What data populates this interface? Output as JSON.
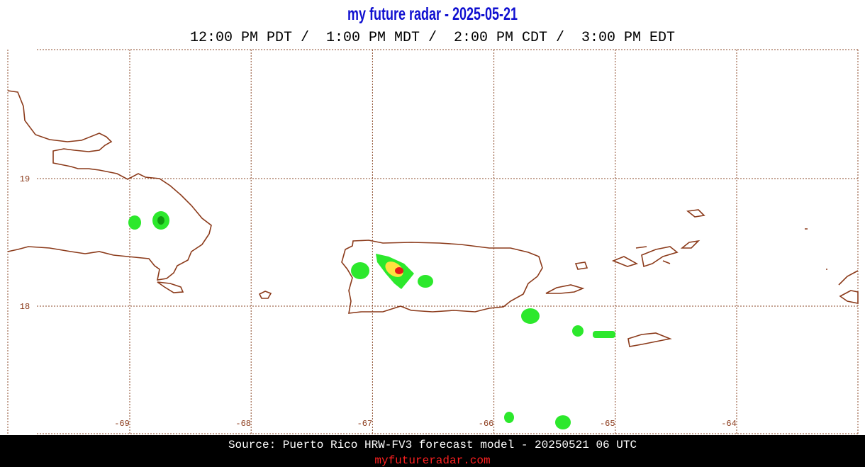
{
  "header": {
    "title": "my future radar - 2025-05-21",
    "times": "12:00 PM PDT /  1:00 PM MDT /  2:00 PM CDT /  3:00 PM EDT"
  },
  "map": {
    "lon_ticks": [
      -69,
      -68,
      -67,
      -66,
      -65,
      -64
    ],
    "lat_ticks": [
      19,
      18
    ]
  },
  "footer": {
    "source": "Source: Puerto Rico HRW-FV3 forecast model - 20250521 06 UTC",
    "site": "myfutureradar.com"
  }
}
